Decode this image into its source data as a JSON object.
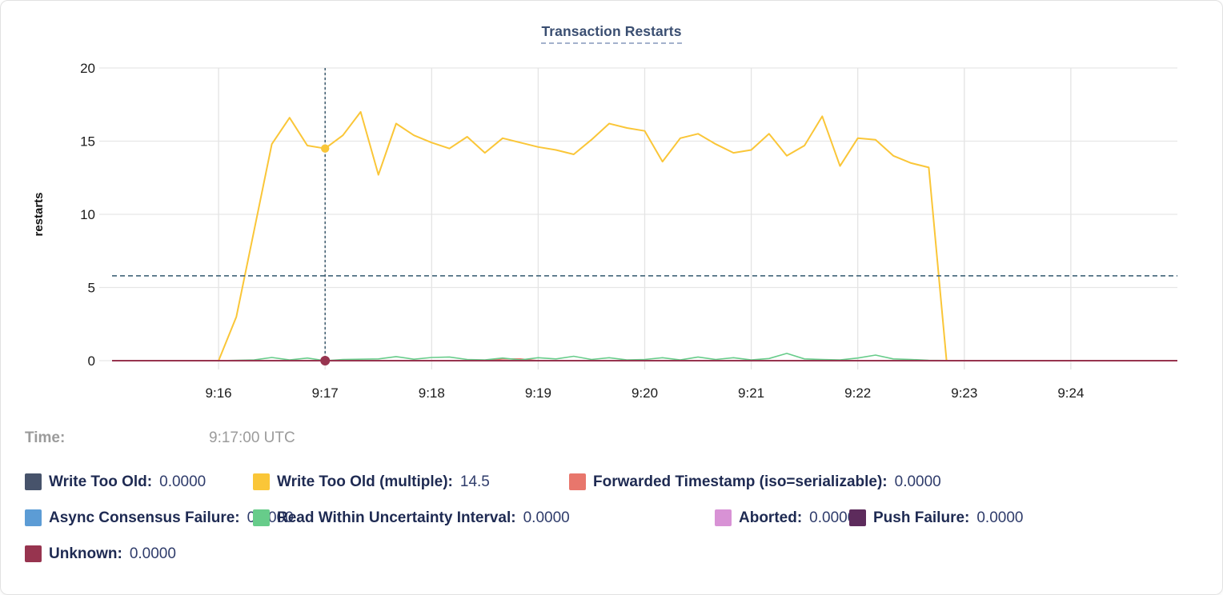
{
  "title": "Transaction Restarts",
  "tooltip": {
    "label": "Time:",
    "value": "9:17:00 UTC"
  },
  "accent_colors": {
    "title_text": "#3A4E71",
    "title_underline": "#A3B1CC",
    "crosshair_vertical": "#3C5A6E",
    "crosshair_horizontal": "#4E6F82",
    "gridline": "#E6E6E6",
    "axis_text": "#1B1B1B",
    "legend_label_text": "#1E2A52",
    "legend_value_text": "#2F3C6B",
    "time_text": "#9B9B9B"
  },
  "chart_data": {
    "type": "line",
    "title": "Transaction Restarts",
    "xlabel": "",
    "ylabel": "restarts",
    "ylim": [
      0,
      20
    ],
    "y_ticks": [
      0,
      5,
      10,
      15,
      20
    ],
    "grid": true,
    "legend_position": "bottom",
    "x_domain_seconds_after_9_15": [
      0,
      600
    ],
    "x_ticks": [
      {
        "t": 60,
        "label": "9:16"
      },
      {
        "t": 120,
        "label": "9:17"
      },
      {
        "t": 180,
        "label": "9:18"
      },
      {
        "t": 240,
        "label": "9:19"
      },
      {
        "t": 300,
        "label": "9:20"
      },
      {
        "t": 360,
        "label": "9:21"
      },
      {
        "t": 420,
        "label": "9:22"
      },
      {
        "t": 480,
        "label": "9:23"
      },
      {
        "t": 540,
        "label": "9:24"
      }
    ],
    "crosshair": {
      "t": 120,
      "time_text": "9:17:00 UTC",
      "threshold_value": 5.8
    },
    "series": [
      {
        "label": "Write Too Old:",
        "value": "0.0000",
        "color": "#47536B",
        "row": 0,
        "dot": false,
        "points": [
          [
            0,
            0
          ],
          [
            600,
            0
          ]
        ]
      },
      {
        "label": "Write Too Old (multiple):",
        "value": "14.5",
        "color": "#FAC638",
        "row": 0,
        "dot": true,
        "points": [
          [
            60,
            0
          ],
          [
            70,
            3
          ],
          [
            80,
            8.9
          ],
          [
            90,
            14.8
          ],
          [
            100,
            16.6
          ],
          [
            110,
            14.7
          ],
          [
            120,
            14.5
          ],
          [
            130,
            15.4
          ],
          [
            140,
            17
          ],
          [
            150,
            12.7
          ],
          [
            160,
            16.2
          ],
          [
            170,
            15.4
          ],
          [
            180,
            14.9
          ],
          [
            190,
            14.5
          ],
          [
            200,
            15.3
          ],
          [
            210,
            14.2
          ],
          [
            220,
            15.2
          ],
          [
            230,
            14.9
          ],
          [
            240,
            14.6
          ],
          [
            250,
            14.4
          ],
          [
            260,
            14.1
          ],
          [
            270,
            15.1
          ],
          [
            280,
            16.2
          ],
          [
            290,
            15.9
          ],
          [
            300,
            15.7
          ],
          [
            310,
            13.6
          ],
          [
            320,
            15.2
          ],
          [
            330,
            15.5
          ],
          [
            340,
            14.8
          ],
          [
            350,
            14.2
          ],
          [
            360,
            14.4
          ],
          [
            370,
            15.5
          ],
          [
            380,
            14
          ],
          [
            390,
            14.7
          ],
          [
            400,
            16.7
          ],
          [
            410,
            13.3
          ],
          [
            420,
            15.2
          ],
          [
            430,
            15.1
          ],
          [
            440,
            14
          ],
          [
            450,
            13.5
          ],
          [
            460,
            13.2
          ],
          [
            470,
            0
          ]
        ]
      },
      {
        "label": "Forwarded Timestamp (iso=serializable):",
        "value": "0.0000",
        "color": "#E8766C",
        "row": 0,
        "dot": false,
        "points": [
          [
            0,
            0
          ],
          [
            210,
            0
          ],
          [
            220,
            0.12
          ],
          [
            230,
            0.12
          ],
          [
            240,
            0
          ],
          [
            600,
            0
          ]
        ]
      },
      {
        "label": "Async Consensus Failure:",
        "value": "0.0000",
        "color": "#5C9CD5",
        "row": 1,
        "dot": false,
        "points": [
          [
            0,
            0
          ],
          [
            600,
            0
          ]
        ]
      },
      {
        "label": "Read Within Uncertainty Interval:",
        "value": "0.0000",
        "color": "#67CC8A",
        "row": 1,
        "dot": false,
        "points": [
          [
            60,
            0
          ],
          [
            80,
            0.05
          ],
          [
            90,
            0.22
          ],
          [
            100,
            0.05
          ],
          [
            110,
            0.18
          ],
          [
            120,
            0
          ],
          [
            130,
            0.08
          ],
          [
            150,
            0.12
          ],
          [
            160,
            0.28
          ],
          [
            170,
            0.1
          ],
          [
            180,
            0.22
          ],
          [
            190,
            0.25
          ],
          [
            200,
            0.08
          ],
          [
            210,
            0.05
          ],
          [
            220,
            0.18
          ],
          [
            230,
            0.05
          ],
          [
            240,
            0.2
          ],
          [
            250,
            0.12
          ],
          [
            260,
            0.3
          ],
          [
            270,
            0.08
          ],
          [
            280,
            0.2
          ],
          [
            290,
            0.05
          ],
          [
            300,
            0.08
          ],
          [
            310,
            0.2
          ],
          [
            320,
            0.05
          ],
          [
            330,
            0.25
          ],
          [
            340,
            0.08
          ],
          [
            350,
            0.2
          ],
          [
            360,
            0.05
          ],
          [
            370,
            0.15
          ],
          [
            380,
            0.5
          ],
          [
            390,
            0.12
          ],
          [
            400,
            0.08
          ],
          [
            410,
            0.05
          ],
          [
            420,
            0.18
          ],
          [
            430,
            0.38
          ],
          [
            440,
            0.12
          ],
          [
            450,
            0.08
          ],
          [
            460,
            0.03
          ],
          [
            480,
            0
          ]
        ]
      },
      {
        "label": "Aborted:",
        "value": "0.0000",
        "color": "#D892D5",
        "row": 1,
        "dot": false,
        "points": [
          [
            0,
            0
          ],
          [
            600,
            0
          ]
        ]
      },
      {
        "label": "Push Failure:",
        "value": "0.0000",
        "color": "#5D2B5C",
        "row": 1,
        "dot": false,
        "points": [
          [
            0,
            0
          ],
          [
            600,
            0
          ]
        ]
      },
      {
        "label": "Unknown:",
        "value": "0.0000",
        "color": "#97344F",
        "row": 2,
        "dot": true,
        "points": [
          [
            0,
            0
          ],
          [
            600,
            0
          ]
        ]
      }
    ]
  }
}
